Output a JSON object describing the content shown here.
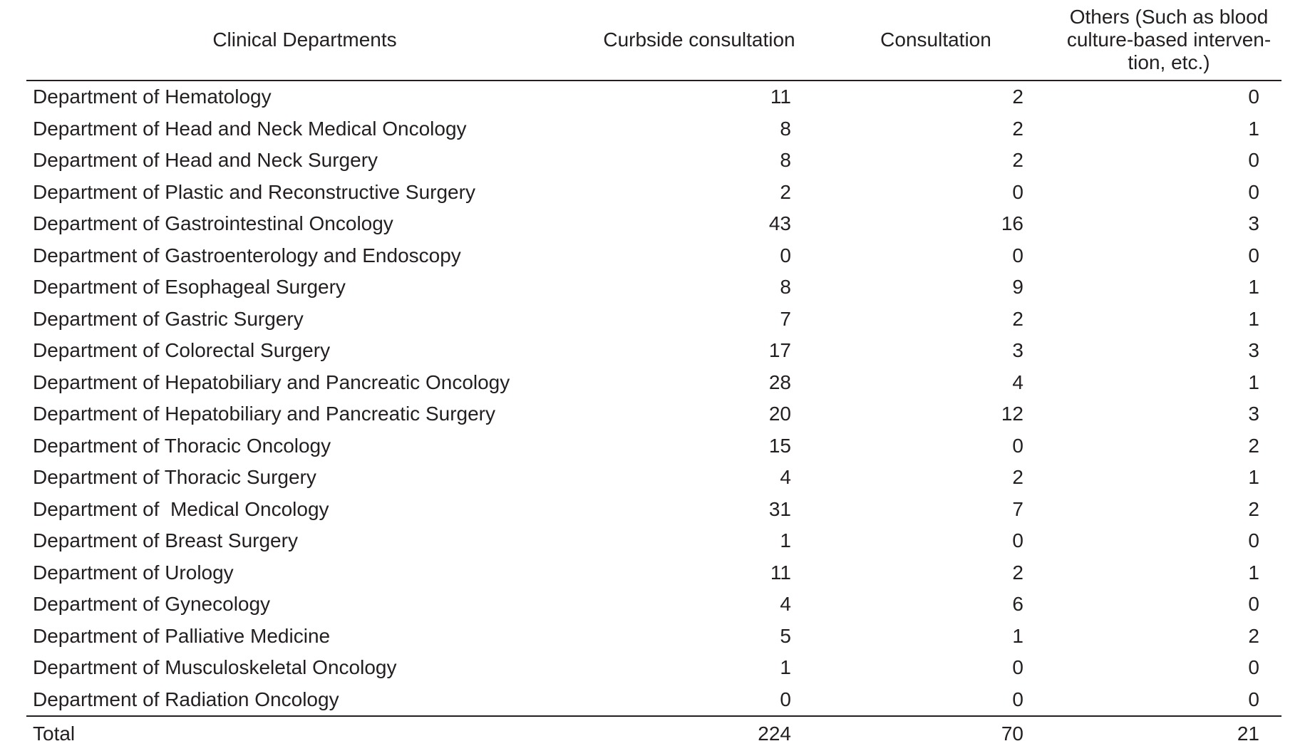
{
  "table": {
    "headers": {
      "department": "Clinical Departments",
      "curbside": "Curbside consultation",
      "consultation": "Consultation",
      "others": "Others (Such as blood\nculture-based interven-\ntion, etc.)"
    },
    "rows": [
      {
        "department": "Department of Hematology",
        "curbside": 11,
        "consultation": 2,
        "others": 0
      },
      {
        "department": "Department of Head and Neck Medical Oncology",
        "curbside": 8,
        "consultation": 2,
        "others": 1
      },
      {
        "department": "Department of Head and Neck Surgery",
        "curbside": 8,
        "consultation": 2,
        "others": 0
      },
      {
        "department": "Department of Plastic and Reconstructive Surgery",
        "curbside": 2,
        "consultation": 0,
        "others": 0
      },
      {
        "department": "Department of Gastrointestinal Oncology",
        "curbside": 43,
        "consultation": 16,
        "others": 3
      },
      {
        "department": "Department of Gastroenterology and Endoscopy",
        "curbside": 0,
        "consultation": 0,
        "others": 0
      },
      {
        "department": "Department of Esophageal Surgery",
        "curbside": 8,
        "consultation": 9,
        "others": 1
      },
      {
        "department": "Department of Gastric Surgery",
        "curbside": 7,
        "consultation": 2,
        "others": 1
      },
      {
        "department": "Department of Colorectal Surgery",
        "curbside": 17,
        "consultation": 3,
        "others": 3
      },
      {
        "department": "Department of Hepatobiliary and Pancreatic Oncology",
        "curbside": 28,
        "consultation": 4,
        "others": 1
      },
      {
        "department": "Department of Hepatobiliary and Pancreatic Surgery",
        "curbside": 20,
        "consultation": 12,
        "others": 3
      },
      {
        "department": "Department of Thoracic Oncology",
        "curbside": 15,
        "consultation": 0,
        "others": 2
      },
      {
        "department": "Department of Thoracic Surgery",
        "curbside": 4,
        "consultation": 2,
        "others": 1
      },
      {
        "department": "Department of  Medical Oncology",
        "curbside": 31,
        "consultation": 7,
        "others": 2
      },
      {
        "department": "Department of Breast Surgery",
        "curbside": 1,
        "consultation": 0,
        "others": 0
      },
      {
        "department": "Department of Urology",
        "curbside": 11,
        "consultation": 2,
        "others": 1
      },
      {
        "department": "Department of Gynecology",
        "curbside": 4,
        "consultation": 6,
        "others": 0
      },
      {
        "department": "Department of Palliative Medicine",
        "curbside": 5,
        "consultation": 1,
        "others": 2
      },
      {
        "department": "Department of Musculoskeletal Oncology",
        "curbside": 1,
        "consultation": 0,
        "others": 0
      },
      {
        "department": "Department of Radiation Oncology",
        "curbside": 0,
        "consultation": 0,
        "others": 0
      }
    ],
    "total": {
      "label": "Total",
      "curbside": 224,
      "consultation": 70,
      "others": 21
    }
  },
  "colors": {
    "text": "#231f20",
    "rule": "#231f20",
    "background": "#ffffff"
  }
}
